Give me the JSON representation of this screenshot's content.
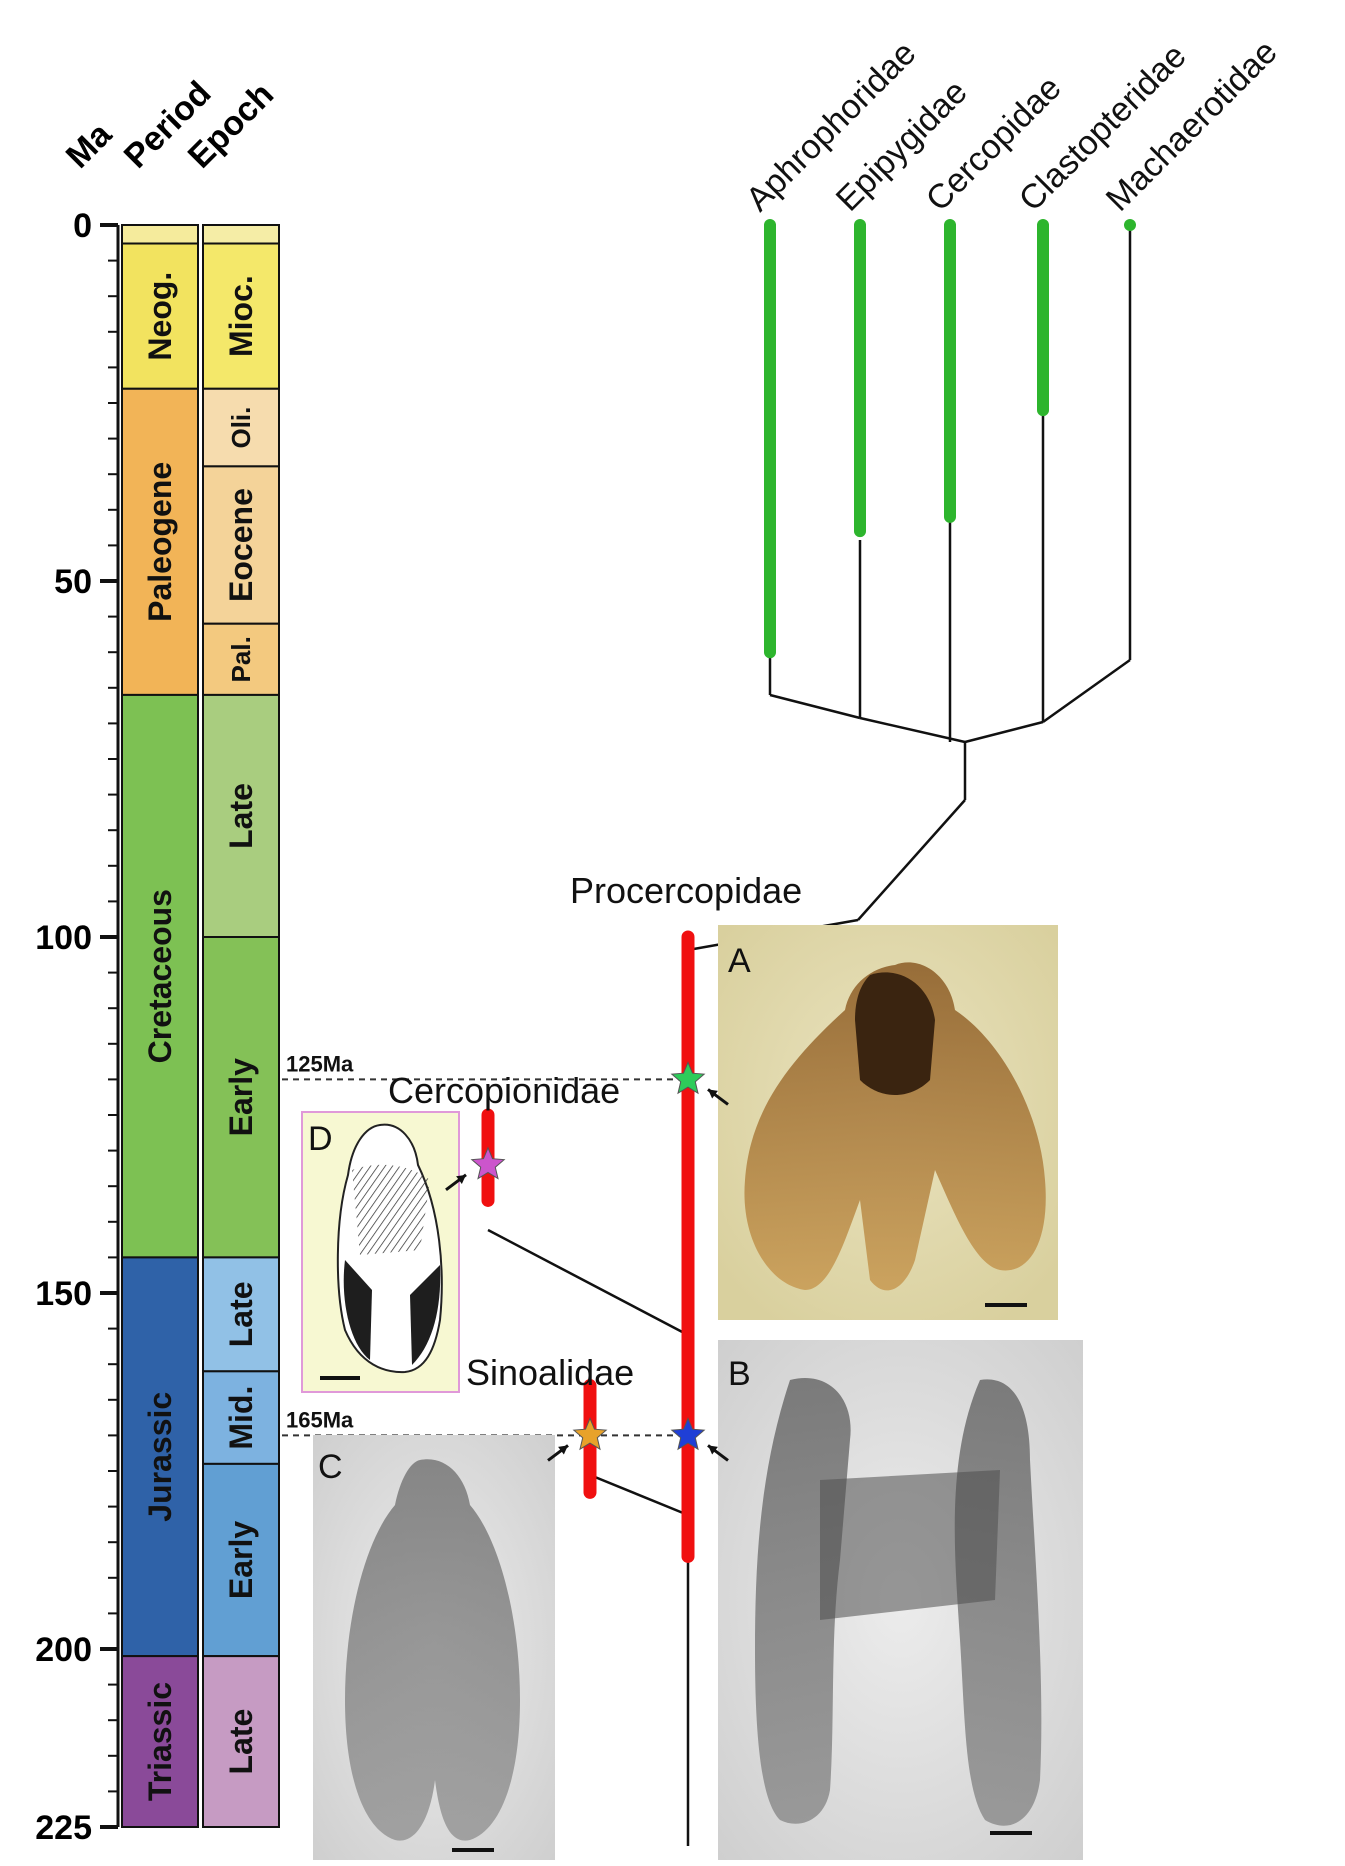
{
  "header": {
    "ma": "Ma",
    "period": "Period",
    "epoch": "Epoch"
  },
  "scale": {
    "ticks": [
      {
        "value": 0,
        "label": "0"
      },
      {
        "value": 50,
        "label": "50"
      },
      {
        "value": 100,
        "label": "100"
      },
      {
        "value": 150,
        "label": "150"
      },
      {
        "value": 200,
        "label": "200"
      },
      {
        "value": 225,
        "label": "225"
      }
    ],
    "minor_step": 5
  },
  "periods": [
    {
      "name": "",
      "start": 0,
      "end": 2.6,
      "color": "#f5eb9c"
    },
    {
      "name": "Neog.",
      "start": 2.6,
      "end": 23,
      "color": "#f2e35f"
    },
    {
      "name": "Paleogene",
      "start": 23,
      "end": 66,
      "color": "#f2b457"
    },
    {
      "name": "Cretaceous",
      "start": 66,
      "end": 145,
      "color": "#7dc153"
    },
    {
      "name": "Jurassic",
      "start": 145,
      "end": 201,
      "color": "#2f62a8"
    },
    {
      "name": "Triassic",
      "start": 201,
      "end": 225,
      "color": "#8a4a99"
    }
  ],
  "epochs": [
    {
      "name": "",
      "start": 0,
      "end": 2.6,
      "color": "#f5eda6"
    },
    {
      "name": "Mioc.",
      "start": 2.6,
      "end": 23,
      "color": "#f4e86a"
    },
    {
      "name": "Oli.",
      "start": 23,
      "end": 33.9,
      "color": "#f6dcae"
    },
    {
      "name": "Eocene",
      "start": 33.9,
      "end": 56,
      "color": "#f4d399"
    },
    {
      "name": "Pal.",
      "start": 56,
      "end": 66,
      "color": "#f3c97f"
    },
    {
      "name": "Late",
      "start": 66,
      "end": 100,
      "color": "#a9cd7f"
    },
    {
      "name": "Early",
      "start": 100,
      "end": 145,
      "color": "#84c157"
    },
    {
      "name": "Late",
      "start": 145,
      "end": 161,
      "color": "#91c1e6"
    },
    {
      "name": "Mid.",
      "start": 161,
      "end": 174,
      "color": "#7db2e0"
    },
    {
      "name": "Early",
      "start": 174,
      "end": 201,
      "color": "#619fd3"
    },
    {
      "name": "Late",
      "start": 201,
      "end": 225,
      "color": "#c69bc3"
    }
  ],
  "taxa": [
    {
      "name": "Aphrophoridae",
      "color": "#2db52d",
      "range_end": 60
    },
    {
      "name": "Epipygidae",
      "color": "#2db52d",
      "range_end": 43
    },
    {
      "name": "Cercopidae",
      "color": "#2db52d",
      "range_end": 41
    },
    {
      "name": "Clastopteridae",
      "color": "#2db52d",
      "range_end": 26
    },
    {
      "name": "Machaerotidae",
      "color": "#2db52d",
      "range_end": 0
    }
  ],
  "fossil_groups": [
    {
      "name": "Procercopidae",
      "start": 100,
      "end": 187,
      "color": "#f01010"
    },
    {
      "name": "Cercopionidae",
      "start": 125,
      "end": 137,
      "color": "#f01010"
    },
    {
      "name": "Sinoalidae",
      "start": 163,
      "end": 178,
      "color": "#f01010"
    }
  ],
  "dates": [
    {
      "label": "125Ma",
      "value": 120
    },
    {
      "label": "165Ma",
      "value": 170
    }
  ],
  "markers": [
    {
      "color": "#2ecc5a",
      "value": 120,
      "group": "Procercopidae",
      "panel": "A"
    },
    {
      "color": "#cc55cc",
      "value": 132,
      "group": "Cercopionidae",
      "panel": "D"
    },
    {
      "color": "#e8a22a",
      "value": 170,
      "group": "Sinoalidae",
      "panel": "C"
    },
    {
      "color": "#1f3fd6",
      "value": 170,
      "group": "Procercopidae",
      "panel": "B"
    }
  ],
  "panels": [
    {
      "letter": "A"
    },
    {
      "letter": "B"
    },
    {
      "letter": "C"
    },
    {
      "letter": "D"
    }
  ]
}
